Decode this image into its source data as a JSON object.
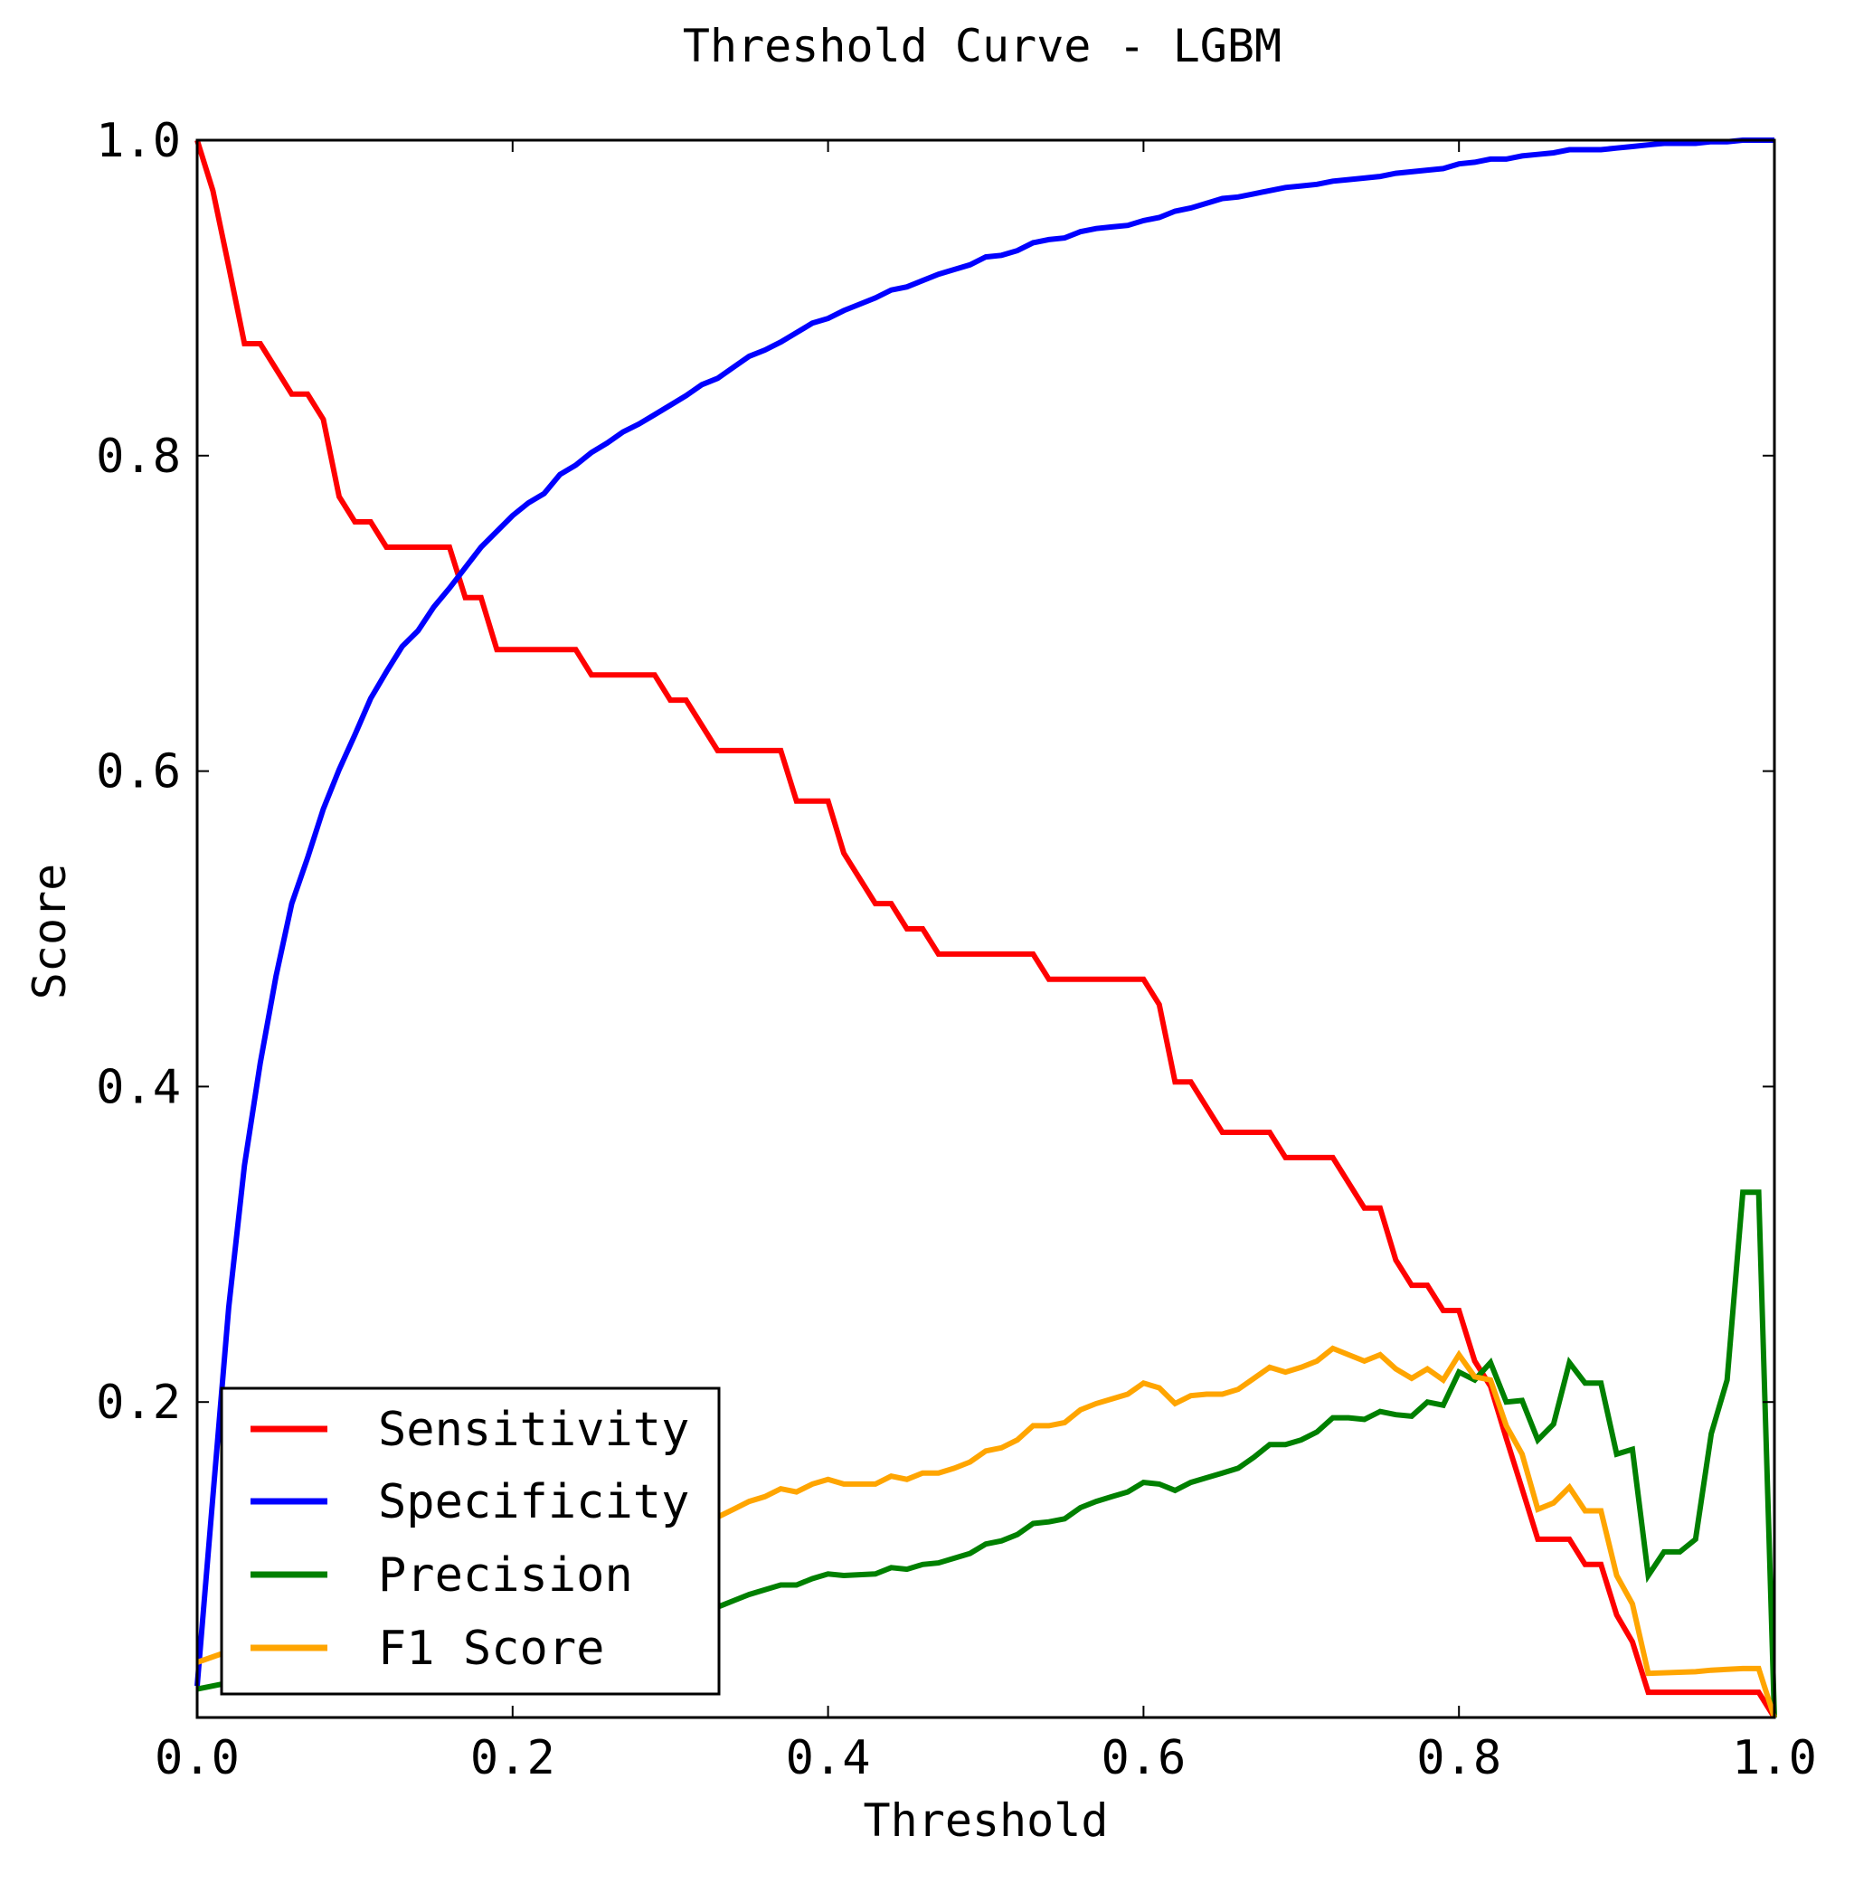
{
  "chart_data": {
    "type": "line",
    "title": "Threshold Curve - LGBM",
    "xlabel": "Threshold",
    "ylabel": "Score",
    "xlim": [
      0.0,
      1.0
    ],
    "ylim": [
      0.0,
      1.0
    ],
    "xticks": [
      "0.0",
      "0.2",
      "0.4",
      "0.6",
      "0.8",
      "1.0"
    ],
    "yticks": [
      "0.2",
      "0.4",
      "0.6",
      "0.8",
      "1.0"
    ],
    "grid": false,
    "legend_position": "lower-left",
    "series": [
      {
        "name": "Sensitivity",
        "color": "#ff0000",
        "points": [
          [
            0.0,
            1.0
          ],
          [
            0.01,
            0.968
          ],
          [
            0.02,
            0.92
          ],
          [
            0.03,
            0.871
          ],
          [
            0.04,
            0.871
          ],
          [
            0.05,
            0.855
          ],
          [
            0.06,
            0.839
          ],
          [
            0.07,
            0.839
          ],
          [
            0.08,
            0.823
          ],
          [
            0.09,
            0.774
          ],
          [
            0.1,
            0.758
          ],
          [
            0.11,
            0.758
          ],
          [
            0.12,
            0.742
          ],
          [
            0.16,
            0.742
          ],
          [
            0.17,
            0.71
          ],
          [
            0.18,
            0.71
          ],
          [
            0.19,
            0.677
          ],
          [
            0.24,
            0.677
          ],
          [
            0.25,
            0.661
          ],
          [
            0.29,
            0.661
          ],
          [
            0.3,
            0.645
          ],
          [
            0.31,
            0.645
          ],
          [
            0.33,
            0.613
          ],
          [
            0.37,
            0.613
          ],
          [
            0.38,
            0.581
          ],
          [
            0.4,
            0.581
          ],
          [
            0.41,
            0.548
          ],
          [
            0.43,
            0.516
          ],
          [
            0.44,
            0.516
          ],
          [
            0.45,
            0.5
          ],
          [
            0.46,
            0.5
          ],
          [
            0.47,
            0.484
          ],
          [
            0.53,
            0.484
          ],
          [
            0.54,
            0.468
          ],
          [
            0.6,
            0.468
          ],
          [
            0.61,
            0.452
          ],
          [
            0.62,
            0.403
          ],
          [
            0.63,
            0.403
          ],
          [
            0.65,
            0.371
          ],
          [
            0.68,
            0.371
          ],
          [
            0.69,
            0.355
          ],
          [
            0.72,
            0.355
          ],
          [
            0.74,
            0.323
          ],
          [
            0.75,
            0.323
          ],
          [
            0.76,
            0.29
          ],
          [
            0.77,
            0.274
          ],
          [
            0.78,
            0.274
          ],
          [
            0.79,
            0.258
          ],
          [
            0.8,
            0.258
          ],
          [
            0.81,
            0.226
          ],
          [
            0.82,
            0.21
          ],
          [
            0.83,
            0.177
          ],
          [
            0.84,
            0.145
          ],
          [
            0.85,
            0.113
          ],
          [
            0.87,
            0.113
          ],
          [
            0.88,
            0.097
          ],
          [
            0.89,
            0.097
          ],
          [
            0.9,
            0.065
          ],
          [
            0.91,
            0.048
          ],
          [
            0.92,
            0.016
          ],
          [
            0.99,
            0.016
          ],
          [
            1.0,
            0.0
          ]
        ]
      },
      {
        "name": "Specificity",
        "color": "#0000ff",
        "points": [
          [
            0.0,
            0.02
          ],
          [
            0.01,
            0.14
          ],
          [
            0.02,
            0.26
          ],
          [
            0.03,
            0.35
          ],
          [
            0.04,
            0.415
          ],
          [
            0.05,
            0.47
          ],
          [
            0.06,
            0.516
          ],
          [
            0.07,
            0.545
          ],
          [
            0.08,
            0.576
          ],
          [
            0.09,
            0.601
          ],
          [
            0.1,
            0.623
          ],
          [
            0.11,
            0.646
          ],
          [
            0.12,
            0.663
          ],
          [
            0.13,
            0.679
          ],
          [
            0.14,
            0.689
          ],
          [
            0.15,
            0.704
          ],
          [
            0.16,
            0.716
          ],
          [
            0.17,
            0.729
          ],
          [
            0.18,
            0.742
          ],
          [
            0.19,
            0.752
          ],
          [
            0.2,
            0.762
          ],
          [
            0.21,
            0.77
          ],
          [
            0.22,
            0.776
          ],
          [
            0.23,
            0.788
          ],
          [
            0.24,
            0.794
          ],
          [
            0.25,
            0.802
          ],
          [
            0.26,
            0.808
          ],
          [
            0.27,
            0.815
          ],
          [
            0.28,
            0.82
          ],
          [
            0.29,
            0.826
          ],
          [
            0.3,
            0.832
          ],
          [
            0.31,
            0.838
          ],
          [
            0.32,
            0.845
          ],
          [
            0.33,
            0.849
          ],
          [
            0.34,
            0.856
          ],
          [
            0.35,
            0.863
          ],
          [
            0.36,
            0.867
          ],
          [
            0.37,
            0.872
          ],
          [
            0.38,
            0.878
          ],
          [
            0.39,
            0.884
          ],
          [
            0.4,
            0.887
          ],
          [
            0.41,
            0.892
          ],
          [
            0.42,
            0.896
          ],
          [
            0.43,
            0.9
          ],
          [
            0.44,
            0.905
          ],
          [
            0.45,
            0.907
          ],
          [
            0.46,
            0.911
          ],
          [
            0.47,
            0.915
          ],
          [
            0.48,
            0.918
          ],
          [
            0.49,
            0.921
          ],
          [
            0.5,
            0.926
          ],
          [
            0.51,
            0.927
          ],
          [
            0.52,
            0.93
          ],
          [
            0.53,
            0.935
          ],
          [
            0.54,
            0.937
          ],
          [
            0.55,
            0.938
          ],
          [
            0.56,
            0.942
          ],
          [
            0.57,
            0.944
          ],
          [
            0.58,
            0.945
          ],
          [
            0.59,
            0.946
          ],
          [
            0.6,
            0.949
          ],
          [
            0.61,
            0.951
          ],
          [
            0.62,
            0.955
          ],
          [
            0.63,
            0.957
          ],
          [
            0.64,
            0.96
          ],
          [
            0.65,
            0.963
          ],
          [
            0.66,
            0.964
          ],
          [
            0.67,
            0.966
          ],
          [
            0.68,
            0.968
          ],
          [
            0.69,
            0.97
          ],
          [
            0.7,
            0.971
          ],
          [
            0.71,
            0.972
          ],
          [
            0.72,
            0.974
          ],
          [
            0.73,
            0.975
          ],
          [
            0.74,
            0.976
          ],
          [
            0.75,
            0.977
          ],
          [
            0.76,
            0.979
          ],
          [
            0.77,
            0.98
          ],
          [
            0.78,
            0.981
          ],
          [
            0.79,
            0.982
          ],
          [
            0.8,
            0.985
          ],
          [
            0.81,
            0.986
          ],
          [
            0.82,
            0.988
          ],
          [
            0.83,
            0.988
          ],
          [
            0.84,
            0.99
          ],
          [
            0.85,
            0.991
          ],
          [
            0.86,
            0.992
          ],
          [
            0.87,
            0.994
          ],
          [
            0.88,
            0.994
          ],
          [
            0.89,
            0.994
          ],
          [
            0.9,
            0.995
          ],
          [
            0.91,
            0.996
          ],
          [
            0.92,
            0.997
          ],
          [
            0.93,
            0.998
          ],
          [
            0.94,
            0.998
          ],
          [
            0.95,
            0.998
          ],
          [
            0.96,
            0.999
          ],
          [
            0.97,
            0.999
          ],
          [
            0.98,
            1.0
          ],
          [
            1.0,
            1.0
          ]
        ]
      },
      {
        "name": "Precision",
        "color": "#008000",
        "points": [
          [
            0.0,
            0.018
          ],
          [
            0.02,
            0.022
          ],
          [
            0.05,
            0.025
          ],
          [
            0.1,
            0.03
          ],
          [
            0.15,
            0.035
          ],
          [
            0.2,
            0.04
          ],
          [
            0.25,
            0.045
          ],
          [
            0.3,
            0.05
          ],
          [
            0.32,
            0.065
          ],
          [
            0.33,
            0.07
          ],
          [
            0.34,
            0.074
          ],
          [
            0.35,
            0.078
          ],
          [
            0.36,
            0.081
          ],
          [
            0.37,
            0.084
          ],
          [
            0.38,
            0.084
          ],
          [
            0.39,
            0.088
          ],
          [
            0.4,
            0.091
          ],
          [
            0.41,
            0.09
          ],
          [
            0.43,
            0.091
          ],
          [
            0.44,
            0.095
          ],
          [
            0.45,
            0.094
          ],
          [
            0.46,
            0.097
          ],
          [
            0.47,
            0.098
          ],
          [
            0.48,
            0.101
          ],
          [
            0.49,
            0.104
          ],
          [
            0.5,
            0.11
          ],
          [
            0.51,
            0.112
          ],
          [
            0.52,
            0.116
          ],
          [
            0.53,
            0.123
          ],
          [
            0.54,
            0.124
          ],
          [
            0.55,
            0.126
          ],
          [
            0.56,
            0.133
          ],
          [
            0.57,
            0.137
          ],
          [
            0.58,
            0.14
          ],
          [
            0.59,
            0.143
          ],
          [
            0.6,
            0.149
          ],
          [
            0.61,
            0.148
          ],
          [
            0.62,
            0.144
          ],
          [
            0.63,
            0.149
          ],
          [
            0.64,
            0.152
          ],
          [
            0.65,
            0.155
          ],
          [
            0.66,
            0.158
          ],
          [
            0.67,
            0.165
          ],
          [
            0.68,
            0.173
          ],
          [
            0.69,
            0.173
          ],
          [
            0.7,
            0.176
          ],
          [
            0.71,
            0.181
          ],
          [
            0.72,
            0.19
          ],
          [
            0.73,
            0.19
          ],
          [
            0.74,
            0.189
          ],
          [
            0.75,
            0.194
          ],
          [
            0.76,
            0.192
          ],
          [
            0.77,
            0.191
          ],
          [
            0.78,
            0.2
          ],
          [
            0.79,
            0.198
          ],
          [
            0.8,
            0.219
          ],
          [
            0.81,
            0.214
          ],
          [
            0.82,
            0.225
          ],
          [
            0.83,
            0.2
          ],
          [
            0.84,
            0.201
          ],
          [
            0.85,
            0.176
          ],
          [
            0.86,
            0.186
          ],
          [
            0.87,
            0.225
          ],
          [
            0.88,
            0.212
          ],
          [
            0.89,
            0.212
          ],
          [
            0.9,
            0.167
          ],
          [
            0.91,
            0.17
          ],
          [
            0.92,
            0.09
          ],
          [
            0.93,
            0.105
          ],
          [
            0.94,
            0.105
          ],
          [
            0.95,
            0.113
          ],
          [
            0.96,
            0.18
          ],
          [
            0.97,
            0.214
          ],
          [
            0.98,
            0.333
          ],
          [
            0.99,
            0.333
          ],
          [
            1.0,
            0.0
          ]
        ]
      },
      {
        "name": "F1 Score",
        "color": "#ffa500",
        "points": [
          [
            0.0,
            0.035
          ],
          [
            0.02,
            0.042
          ],
          [
            0.05,
            0.048
          ],
          [
            0.1,
            0.058
          ],
          [
            0.15,
            0.067
          ],
          [
            0.2,
            0.075
          ],
          [
            0.25,
            0.085
          ],
          [
            0.3,
            0.095
          ],
          [
            0.32,
            0.12
          ],
          [
            0.33,
            0.127
          ],
          [
            0.34,
            0.132
          ],
          [
            0.35,
            0.137
          ],
          [
            0.36,
            0.14
          ],
          [
            0.37,
            0.145
          ],
          [
            0.38,
            0.143
          ],
          [
            0.39,
            0.148
          ],
          [
            0.4,
            0.151
          ],
          [
            0.41,
            0.148
          ],
          [
            0.43,
            0.148
          ],
          [
            0.44,
            0.153
          ],
          [
            0.45,
            0.151
          ],
          [
            0.46,
            0.155
          ],
          [
            0.47,
            0.155
          ],
          [
            0.48,
            0.158
          ],
          [
            0.49,
            0.162
          ],
          [
            0.5,
            0.169
          ],
          [
            0.51,
            0.171
          ],
          [
            0.52,
            0.176
          ],
          [
            0.53,
            0.185
          ],
          [
            0.54,
            0.185
          ],
          [
            0.55,
            0.187
          ],
          [
            0.56,
            0.195
          ],
          [
            0.57,
            0.199
          ],
          [
            0.58,
            0.202
          ],
          [
            0.59,
            0.205
          ],
          [
            0.6,
            0.212
          ],
          [
            0.61,
            0.209
          ],
          [
            0.62,
            0.199
          ],
          [
            0.63,
            0.204
          ],
          [
            0.64,
            0.205
          ],
          [
            0.65,
            0.205
          ],
          [
            0.66,
            0.208
          ],
          [
            0.67,
            0.215
          ],
          [
            0.68,
            0.222
          ],
          [
            0.69,
            0.219
          ],
          [
            0.7,
            0.222
          ],
          [
            0.71,
            0.226
          ],
          [
            0.72,
            0.234
          ],
          [
            0.73,
            0.23
          ],
          [
            0.74,
            0.226
          ],
          [
            0.75,
            0.23
          ],
          [
            0.76,
            0.221
          ],
          [
            0.77,
            0.215
          ],
          [
            0.78,
            0.221
          ],
          [
            0.79,
            0.214
          ],
          [
            0.8,
            0.23
          ],
          [
            0.81,
            0.216
          ],
          [
            0.82,
            0.214
          ],
          [
            0.83,
            0.185
          ],
          [
            0.84,
            0.167
          ],
          [
            0.85,
            0.132
          ],
          [
            0.86,
            0.136
          ],
          [
            0.87,
            0.146
          ],
          [
            0.88,
            0.131
          ],
          [
            0.89,
            0.131
          ],
          [
            0.9,
            0.09
          ],
          [
            0.91,
            0.072
          ],
          [
            0.92,
            0.028
          ],
          [
            0.95,
            0.029
          ],
          [
            0.96,
            0.03
          ],
          [
            0.98,
            0.031
          ],
          [
            0.99,
            0.031
          ],
          [
            1.0,
            0.0
          ]
        ]
      }
    ]
  }
}
